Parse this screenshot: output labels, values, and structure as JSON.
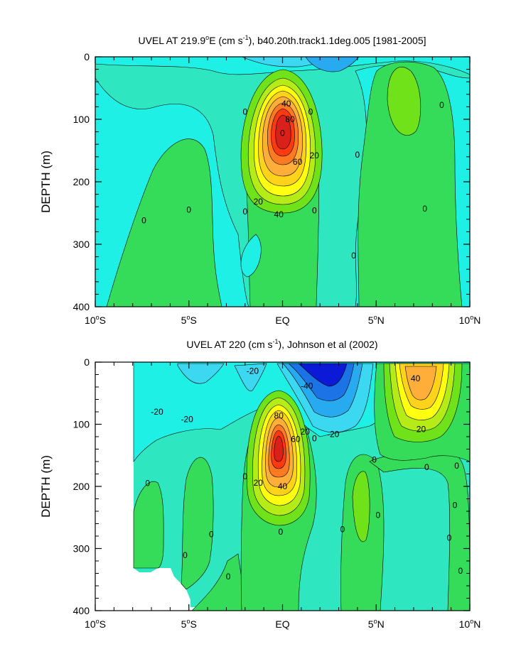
{
  "chart_data": [
    {
      "type": "heatmap",
      "title_main": "UVEL AT 219.9",
      "title_deg": "o",
      "title_mid": "E (cm s",
      "title_exp": "-1",
      "title_tail": "), b40.20th.track1.1deg.005 [1981-2005]",
      "ylabel": "DEPTH (m)",
      "xlabel": "",
      "x_ticks": [
        "10",
        "5",
        "EQ",
        "5",
        "10"
      ],
      "x_tick_hemi": [
        "S",
        "S",
        "",
        "N",
        "N"
      ],
      "x_tick_values": [
        -10,
        -5,
        0,
        5,
        10
      ],
      "y_ticks": [
        "0",
        "100",
        "200",
        "300",
        "400"
      ],
      "y_tick_values": [
        0,
        100,
        200,
        300,
        400
      ],
      "xlim": [
        -10,
        10
      ],
      "ylim": [
        400,
        0
      ],
      "x_units": "degrees latitude",
      "y_units": "m",
      "contour_labels": [
        {
          "text": "0",
          "lat": -2.0,
          "depth": 88
        },
        {
          "text": "0",
          "lat": 1.5,
          "depth": 88
        },
        {
          "text": "40",
          "lat": 0.2,
          "depth": 75
        },
        {
          "text": "80",
          "lat": 0.4,
          "depth": 100
        },
        {
          "text": "0",
          "lat": 0.0,
          "depth": 122
        },
        {
          "text": "20",
          "lat": 1.7,
          "depth": 158
        },
        {
          "text": "60",
          "lat": 0.8,
          "depth": 168
        },
        {
          "text": "20",
          "lat": -1.3,
          "depth": 232
        },
        {
          "text": "40",
          "lat": -0.2,
          "depth": 252
        },
        {
          "text": "0",
          "lat": 4.0,
          "depth": 157
        },
        {
          "text": "0",
          "lat": 8.5,
          "depth": 77
        },
        {
          "text": "0",
          "lat": -5.0,
          "depth": 245
        },
        {
          "text": "0",
          "lat": -2.0,
          "depth": 248
        },
        {
          "text": "0",
          "lat": 1.7,
          "depth": 246
        },
        {
          "text": "0",
          "lat": 7.6,
          "depth": 243
        },
        {
          "text": "0",
          "lat": -7.4,
          "depth": 262
        },
        {
          "text": "0",
          "lat": 3.8,
          "depth": 318
        }
      ]
    },
    {
      "type": "heatmap",
      "title_main": "UVEL AT 220 (cm s",
      "title_exp": "-1",
      "title_tail": "), Johnson et al (2002)",
      "ylabel": "DEPTH (m)",
      "xlabel": "",
      "x_ticks": [
        "10",
        "5",
        "EQ",
        "5",
        "10"
      ],
      "x_tick_hemi": [
        "S",
        "S",
        "",
        "N",
        "N"
      ],
      "x_tick_values": [
        -10,
        -5,
        0,
        5,
        10
      ],
      "y_ticks": [
        "0",
        "100",
        "200",
        "300",
        "400"
      ],
      "y_tick_values": [
        0,
        100,
        200,
        300,
        400
      ],
      "xlim": [
        -10,
        10
      ],
      "ylim": [
        400,
        0
      ],
      "x_units": "degrees latitude",
      "y_units": "m",
      "contour_labels": [
        {
          "text": "-20",
          "lat": -1.6,
          "depth": 14
        },
        {
          "text": "-40",
          "lat": 1.3,
          "depth": 38
        },
        {
          "text": "40",
          "lat": 7.1,
          "depth": 26
        },
        {
          "text": "-20",
          "lat": -6.7,
          "depth": 80
        },
        {
          "text": "-20",
          "lat": -5.1,
          "depth": 92
        },
        {
          "text": "80",
          "lat": -0.2,
          "depth": 86
        },
        {
          "text": "20",
          "lat": 1.2,
          "depth": 112
        },
        {
          "text": "60",
          "lat": 0.7,
          "depth": 124
        },
        {
          "text": "-20",
          "lat": 2.7,
          "depth": 116
        },
        {
          "text": "20",
          "lat": 7.4,
          "depth": 108
        },
        {
          "text": "0",
          "lat": 1.7,
          "depth": 123
        },
        {
          "text": "20",
          "lat": -1.3,
          "depth": 194
        },
        {
          "text": "40",
          "lat": 0.0,
          "depth": 200
        },
        {
          "text": "0",
          "lat": 4.9,
          "depth": 157
        },
        {
          "text": "0",
          "lat": 7.7,
          "depth": 169
        },
        {
          "text": "0",
          "lat": 9.3,
          "depth": 167
        },
        {
          "text": "0",
          "lat": -2.0,
          "depth": 184
        },
        {
          "text": "0",
          "lat": -7.2,
          "depth": 195
        },
        {
          "text": "0",
          "lat": -0.1,
          "depth": 273
        },
        {
          "text": "0",
          "lat": 3.2,
          "depth": 269
        },
        {
          "text": "0",
          "lat": 5.1,
          "depth": 246
        },
        {
          "text": "0",
          "lat": -3.8,
          "depth": 277
        },
        {
          "text": "0",
          "lat": 9.2,
          "depth": 230
        },
        {
          "text": "0",
          "lat": 8.9,
          "depth": 283
        },
        {
          "text": "0",
          "lat": -5.2,
          "depth": 311
        },
        {
          "text": "0",
          "lat": 9.5,
          "depth": 336
        },
        {
          "text": "0",
          "lat": -2.9,
          "depth": 345
        }
      ]
    }
  ],
  "colors": {
    "background": "#ffffff",
    "neg_strong": "#0a1ad6",
    "neg_mid": "#1a74e6",
    "neg_light": "#28aaf0",
    "neg_faint": "#3cd8f2",
    "near_zero_neg": "#1ff0e6",
    "near_zero": "#2ee6c0",
    "pos_faint": "#35dc5a",
    "pos_light": "#6fe21a",
    "pos_mid": "#b5ec18",
    "pos_yellow": "#ffff10",
    "pos_gold": "#ffd31a",
    "pos_orange": "#ffae3a",
    "pos_dark_orange": "#ff7a20",
    "pos_red": "#ff3a10",
    "pos_dark_red": "#d9201a",
    "contour_line": "#000000"
  }
}
